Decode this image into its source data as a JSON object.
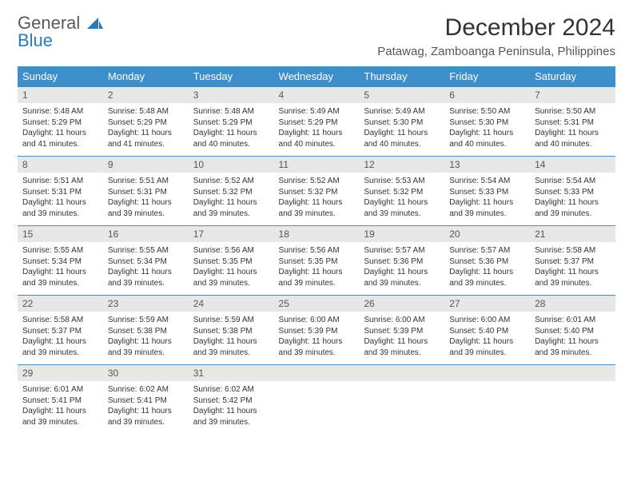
{
  "brand": {
    "line1": "General",
    "line2": "Blue"
  },
  "title": "December 2024",
  "location": "Patawag, Zamboanga Peninsula, Philippines",
  "colors": {
    "header_bg": "#3f8ecc",
    "header_text": "#ffffff",
    "daynum_bg": "#e7e7e7",
    "row_divider": "#3f8ecc",
    "brand_gray": "#5a5a5a",
    "brand_blue": "#2a7ab9",
    "page_bg": "#ffffff"
  },
  "layout": {
    "columns": 7,
    "rows": 5,
    "daynum_fontsize": 12,
    "cell_fontsize": 10,
    "title_fontsize": 30,
    "location_fontsize": 15,
    "weekday_fontsize": 13
  },
  "weekdays": [
    "Sunday",
    "Monday",
    "Tuesday",
    "Wednesday",
    "Thursday",
    "Friday",
    "Saturday"
  ],
  "days": [
    {
      "n": 1,
      "sunrise": "Sunrise: 5:48 AM",
      "sunset": "Sunset: 5:29 PM",
      "daylight": "Daylight: 11 hours and 41 minutes."
    },
    {
      "n": 2,
      "sunrise": "Sunrise: 5:48 AM",
      "sunset": "Sunset: 5:29 PM",
      "daylight": "Daylight: 11 hours and 41 minutes."
    },
    {
      "n": 3,
      "sunrise": "Sunrise: 5:48 AM",
      "sunset": "Sunset: 5:29 PM",
      "daylight": "Daylight: 11 hours and 40 minutes."
    },
    {
      "n": 4,
      "sunrise": "Sunrise: 5:49 AM",
      "sunset": "Sunset: 5:29 PM",
      "daylight": "Daylight: 11 hours and 40 minutes."
    },
    {
      "n": 5,
      "sunrise": "Sunrise: 5:49 AM",
      "sunset": "Sunset: 5:30 PM",
      "daylight": "Daylight: 11 hours and 40 minutes."
    },
    {
      "n": 6,
      "sunrise": "Sunrise: 5:50 AM",
      "sunset": "Sunset: 5:30 PM",
      "daylight": "Daylight: 11 hours and 40 minutes."
    },
    {
      "n": 7,
      "sunrise": "Sunrise: 5:50 AM",
      "sunset": "Sunset: 5:31 PM",
      "daylight": "Daylight: 11 hours and 40 minutes."
    },
    {
      "n": 8,
      "sunrise": "Sunrise: 5:51 AM",
      "sunset": "Sunset: 5:31 PM",
      "daylight": "Daylight: 11 hours and 39 minutes."
    },
    {
      "n": 9,
      "sunrise": "Sunrise: 5:51 AM",
      "sunset": "Sunset: 5:31 PM",
      "daylight": "Daylight: 11 hours and 39 minutes."
    },
    {
      "n": 10,
      "sunrise": "Sunrise: 5:52 AM",
      "sunset": "Sunset: 5:32 PM",
      "daylight": "Daylight: 11 hours and 39 minutes."
    },
    {
      "n": 11,
      "sunrise": "Sunrise: 5:52 AM",
      "sunset": "Sunset: 5:32 PM",
      "daylight": "Daylight: 11 hours and 39 minutes."
    },
    {
      "n": 12,
      "sunrise": "Sunrise: 5:53 AM",
      "sunset": "Sunset: 5:32 PM",
      "daylight": "Daylight: 11 hours and 39 minutes."
    },
    {
      "n": 13,
      "sunrise": "Sunrise: 5:54 AM",
      "sunset": "Sunset: 5:33 PM",
      "daylight": "Daylight: 11 hours and 39 minutes."
    },
    {
      "n": 14,
      "sunrise": "Sunrise: 5:54 AM",
      "sunset": "Sunset: 5:33 PM",
      "daylight": "Daylight: 11 hours and 39 minutes."
    },
    {
      "n": 15,
      "sunrise": "Sunrise: 5:55 AM",
      "sunset": "Sunset: 5:34 PM",
      "daylight": "Daylight: 11 hours and 39 minutes."
    },
    {
      "n": 16,
      "sunrise": "Sunrise: 5:55 AM",
      "sunset": "Sunset: 5:34 PM",
      "daylight": "Daylight: 11 hours and 39 minutes."
    },
    {
      "n": 17,
      "sunrise": "Sunrise: 5:56 AM",
      "sunset": "Sunset: 5:35 PM",
      "daylight": "Daylight: 11 hours and 39 minutes."
    },
    {
      "n": 18,
      "sunrise": "Sunrise: 5:56 AM",
      "sunset": "Sunset: 5:35 PM",
      "daylight": "Daylight: 11 hours and 39 minutes."
    },
    {
      "n": 19,
      "sunrise": "Sunrise: 5:57 AM",
      "sunset": "Sunset: 5:36 PM",
      "daylight": "Daylight: 11 hours and 39 minutes."
    },
    {
      "n": 20,
      "sunrise": "Sunrise: 5:57 AM",
      "sunset": "Sunset: 5:36 PM",
      "daylight": "Daylight: 11 hours and 39 minutes."
    },
    {
      "n": 21,
      "sunrise": "Sunrise: 5:58 AM",
      "sunset": "Sunset: 5:37 PM",
      "daylight": "Daylight: 11 hours and 39 minutes."
    },
    {
      "n": 22,
      "sunrise": "Sunrise: 5:58 AM",
      "sunset": "Sunset: 5:37 PM",
      "daylight": "Daylight: 11 hours and 39 minutes."
    },
    {
      "n": 23,
      "sunrise": "Sunrise: 5:59 AM",
      "sunset": "Sunset: 5:38 PM",
      "daylight": "Daylight: 11 hours and 39 minutes."
    },
    {
      "n": 24,
      "sunrise": "Sunrise: 5:59 AM",
      "sunset": "Sunset: 5:38 PM",
      "daylight": "Daylight: 11 hours and 39 minutes."
    },
    {
      "n": 25,
      "sunrise": "Sunrise: 6:00 AM",
      "sunset": "Sunset: 5:39 PM",
      "daylight": "Daylight: 11 hours and 39 minutes."
    },
    {
      "n": 26,
      "sunrise": "Sunrise: 6:00 AM",
      "sunset": "Sunset: 5:39 PM",
      "daylight": "Daylight: 11 hours and 39 minutes."
    },
    {
      "n": 27,
      "sunrise": "Sunrise: 6:00 AM",
      "sunset": "Sunset: 5:40 PM",
      "daylight": "Daylight: 11 hours and 39 minutes."
    },
    {
      "n": 28,
      "sunrise": "Sunrise: 6:01 AM",
      "sunset": "Sunset: 5:40 PM",
      "daylight": "Daylight: 11 hours and 39 minutes."
    },
    {
      "n": 29,
      "sunrise": "Sunrise: 6:01 AM",
      "sunset": "Sunset: 5:41 PM",
      "daylight": "Daylight: 11 hours and 39 minutes."
    },
    {
      "n": 30,
      "sunrise": "Sunrise: 6:02 AM",
      "sunset": "Sunset: 5:41 PM",
      "daylight": "Daylight: 11 hours and 39 minutes."
    },
    {
      "n": 31,
      "sunrise": "Sunrise: 6:02 AM",
      "sunset": "Sunset: 5:42 PM",
      "daylight": "Daylight: 11 hours and 39 minutes."
    }
  ]
}
